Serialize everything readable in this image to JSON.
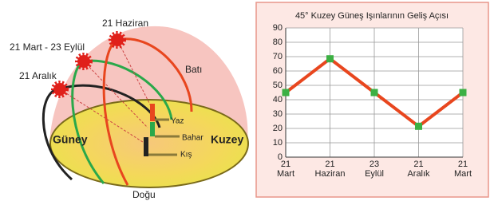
{
  "diagram": {
    "labels": {
      "summer": "21 Haziran",
      "equinox": "21 Mart - 23 Eylül",
      "winter": "21 Aralık",
      "west": "Batı",
      "yaz": "Yaz",
      "bahar": "Bahar",
      "kis": "Kış",
      "south": "Güney",
      "north": "Kuzey",
      "east": "Doğu"
    }
  },
  "chart_data": {
    "type": "line",
    "title": "45° Kuzey Güneş Işınlarının Geliş Açısı",
    "categories": [
      "21\nMart",
      "21\nHaziran",
      "23\nEylül",
      "21\nAralık",
      "21\nMart"
    ],
    "series": [
      {
        "color": "#e8461e",
        "marker_color": "#3cb043",
        "values": [
          45,
          68.5,
          45,
          21.5,
          45
        ]
      }
    ],
    "ylim": [
      0,
      90
    ],
    "yticks": [
      0,
      10,
      20,
      30,
      40,
      50,
      60,
      70,
      80,
      90
    ],
    "grid": true
  }
}
